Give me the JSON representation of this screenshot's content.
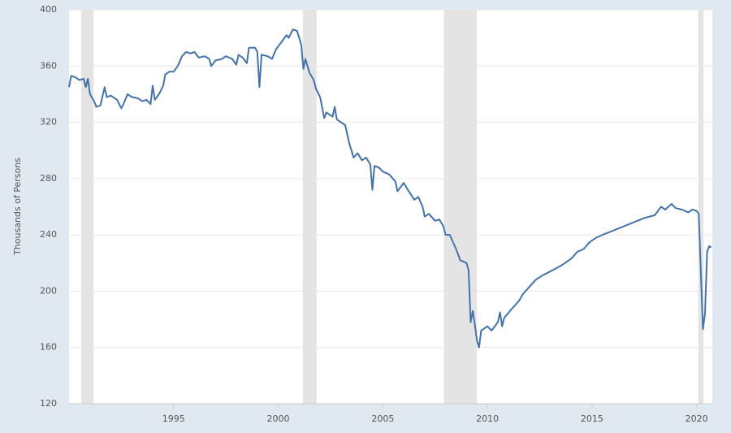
{
  "chart_data": {
    "type": "line",
    "ylabel": "Thousands of Persons",
    "xlim": [
      1990,
      2020.75
    ],
    "xticks": [
      1995,
      2000,
      2005,
      2010,
      2015,
      2020
    ],
    "ylim": [
      120,
      400
    ],
    "yticks": [
      120,
      160,
      200,
      240,
      280,
      320,
      360,
      400
    ],
    "grid": true,
    "shaded_periods": [
      [
        1990.58,
        1991.17
      ],
      [
        2001.17,
        2001.83
      ],
      [
        2007.92,
        2009.5
      ],
      [
        2020.08,
        2020.33
      ]
    ],
    "shade_color": "#e4e4e4",
    "series": [
      {
        "color": "#4572a7",
        "x": [
          1990.0,
          1990.1,
          1990.3,
          1990.5,
          1990.7,
          1990.8,
          1990.9,
          1991.0,
          1991.2,
          1991.3,
          1991.5,
          1991.7,
          1991.8,
          1992.0,
          1992.3,
          1992.5,
          1992.6,
          1992.8,
          1993.0,
          1993.3,
          1993.5,
          1993.7,
          1993.9,
          1994.0,
          1994.1,
          1994.3,
          1994.5,
          1994.6,
          1994.8,
          1995.0,
          1995.2,
          1995.4,
          1995.6,
          1995.8,
          1996.0,
          1996.2,
          1996.5,
          1996.7,
          1996.8,
          1997.0,
          1997.3,
          1997.5,
          1997.8,
          1998.0,
          1998.1,
          1998.3,
          1998.5,
          1998.6,
          1998.9,
          1999.0,
          1999.1,
          1999.2,
          1999.5,
          1999.7,
          1999.9,
          2000.2,
          2000.4,
          2000.5,
          2000.7,
          2000.9,
          2001.0,
          2001.1,
          2001.2,
          2001.3,
          2001.5,
          2001.7,
          2001.8,
          2002.0,
          2002.2,
          2002.3,
          2002.6,
          2002.7,
          2002.8,
          2003.2,
          2003.4,
          2003.6,
          2003.8,
          2004.0,
          2004.2,
          2004.4,
          2004.5,
          2004.6,
          2004.8,
          2005.0,
          2005.3,
          2005.6,
          2005.7,
          2006.0,
          2006.2,
          2006.5,
          2006.7,
          2006.9,
          2007.0,
          2007.2,
          2007.5,
          2007.7,
          2007.9,
          2008.0,
          2008.2,
          2008.5,
          2008.7,
          2009.0,
          2009.1,
          2009.2,
          2009.3,
          2009.4,
          2009.5,
          2009.6,
          2009.7,
          2010.0,
          2010.2,
          2010.5,
          2010.6,
          2010.7,
          2010.8,
          2011.2,
          2011.5,
          2011.7,
          2012.0,
          2012.3,
          2012.6,
          2013.0,
          2013.5,
          2013.8,
          2014.0,
          2014.3,
          2014.6,
          2014.9,
          2015.2,
          2015.5,
          2016.0,
          2016.5,
          2017.0,
          2017.5,
          2018.0,
          2018.3,
          2018.5,
          2018.8,
          2019.0,
          2019.3,
          2019.6,
          2019.8,
          2020.0,
          2020.1,
          2020.2,
          2020.3,
          2020.4,
          2020.5,
          2020.6,
          2020.7
        ],
        "values": [
          345,
          353,
          352,
          350,
          351,
          345,
          351,
          340,
          335,
          331,
          332,
          345,
          338,
          339,
          336,
          330,
          333,
          340,
          338,
          337,
          335,
          336,
          333,
          346,
          336,
          340,
          346,
          354,
          356,
          356,
          360,
          367,
          370,
          369,
          370,
          366,
          367,
          365,
          360,
          364,
          365,
          367,
          365,
          361,
          368,
          366,
          362,
          373,
          373,
          370,
          345,
          368,
          367,
          365,
          372,
          378,
          382,
          380,
          386,
          385,
          380,
          375,
          358,
          365,
          355,
          350,
          344,
          338,
          323,
          327,
          324,
          331,
          322,
          318,
          305,
          295,
          298,
          293,
          295,
          290,
          272,
          289,
          288,
          285,
          283,
          278,
          271,
          277,
          272,
          265,
          267,
          260,
          253,
          255,
          250,
          251,
          246,
          240,
          240,
          230,
          222,
          220,
          215,
          178,
          186,
          176,
          165,
          160,
          172,
          175,
          172,
          178,
          185,
          175,
          181,
          188,
          193,
          198,
          203,
          208,
          211,
          214,
          218,
          221,
          223,
          228,
          230,
          235,
          238,
          240,
          243,
          246,
          249,
          252,
          254,
          260,
          258,
          262,
          259,
          258,
          256,
          258,
          257,
          255,
          215,
          173,
          184,
          228,
          232,
          231
        ]
      }
    ]
  }
}
